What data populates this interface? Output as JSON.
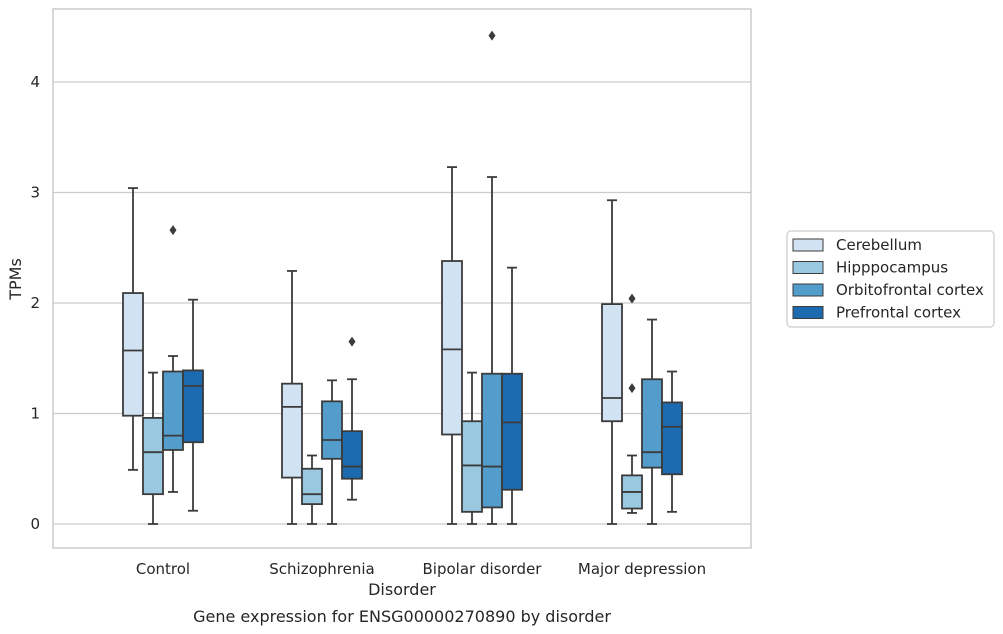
{
  "caption": "Gene expression for ENSG00000270890 by disorder",
  "chart_data": {
    "type": "box",
    "xlabel": "Disorder",
    "ylabel": "TPMs",
    "ylim": [
      -0.2,
      4.67
    ],
    "yticks": [
      0,
      1,
      2,
      3,
      4
    ],
    "grid": "horizontal",
    "legend_position": "right",
    "categories": [
      "Control",
      "Schizophrenia",
      "Bipolar disorder",
      "Major depression"
    ],
    "series": [
      {
        "name": "Cerebellum",
        "color": "#d1e2f2",
        "boxes": [
          {
            "whislo": 0.49,
            "q1": 0.98,
            "med": 1.57,
            "q3": 2.09,
            "whishi": 3.04,
            "fliers": []
          },
          {
            "whislo": 0.0,
            "q1": 0.42,
            "med": 1.06,
            "q3": 1.27,
            "whishi": 2.29,
            "fliers": []
          },
          {
            "whislo": 0.0,
            "q1": 0.81,
            "med": 1.58,
            "q3": 2.38,
            "whishi": 3.23,
            "fliers": []
          },
          {
            "whislo": 0.0,
            "q1": 0.93,
            "med": 1.14,
            "q3": 1.99,
            "whishi": 2.93,
            "fliers": []
          }
        ]
      },
      {
        "name": "Hipppocampus",
        "color": "#9ac8e0",
        "boxes": [
          {
            "whislo": 0.0,
            "q1": 0.27,
            "med": 0.65,
            "q3": 0.96,
            "whishi": 1.37,
            "fliers": []
          },
          {
            "whislo": 0.0,
            "q1": 0.18,
            "med": 0.27,
            "q3": 0.5,
            "whishi": 0.62,
            "fliers": []
          },
          {
            "whislo": 0.0,
            "q1": 0.11,
            "med": 0.53,
            "q3": 0.93,
            "whishi": 1.37,
            "fliers": []
          },
          {
            "whislo": 0.1,
            "q1": 0.14,
            "med": 0.29,
            "q3": 0.44,
            "whishi": 0.62,
            "fliers": [
              1.23,
              2.04
            ]
          }
        ]
      },
      {
        "name": "Orbitofrontal cortex",
        "color": "#529dcc",
        "boxes": [
          {
            "whislo": 0.29,
            "q1": 0.67,
            "med": 0.8,
            "q3": 1.38,
            "whishi": 1.52,
            "fliers": [
              2.66
            ]
          },
          {
            "whislo": 0.0,
            "q1": 0.59,
            "med": 0.76,
            "q3": 1.11,
            "whishi": 1.3,
            "fliers": []
          },
          {
            "whislo": 0.0,
            "q1": 0.15,
            "med": 0.52,
            "q3": 1.36,
            "whishi": 3.14,
            "fliers": [
              4.42
            ]
          },
          {
            "whislo": 0.0,
            "q1": 0.51,
            "med": 0.65,
            "q3": 1.31,
            "whishi": 1.85,
            "fliers": []
          }
        ]
      },
      {
        "name": "Prefrontal cortex",
        "color": "#1c6aaf",
        "boxes": [
          {
            "whislo": 0.12,
            "q1": 0.74,
            "med": 1.25,
            "q3": 1.39,
            "whishi": 2.03,
            "fliers": []
          },
          {
            "whislo": 0.22,
            "q1": 0.41,
            "med": 0.52,
            "q3": 0.84,
            "whishi": 1.31,
            "fliers": [
              1.65
            ]
          },
          {
            "whislo": 0.0,
            "q1": 0.31,
            "med": 0.92,
            "q3": 1.36,
            "whishi": 2.32,
            "fliers": []
          },
          {
            "whislo": 0.11,
            "q1": 0.45,
            "med": 0.88,
            "q3": 1.1,
            "whishi": 1.38,
            "fliers": []
          }
        ]
      }
    ]
  }
}
